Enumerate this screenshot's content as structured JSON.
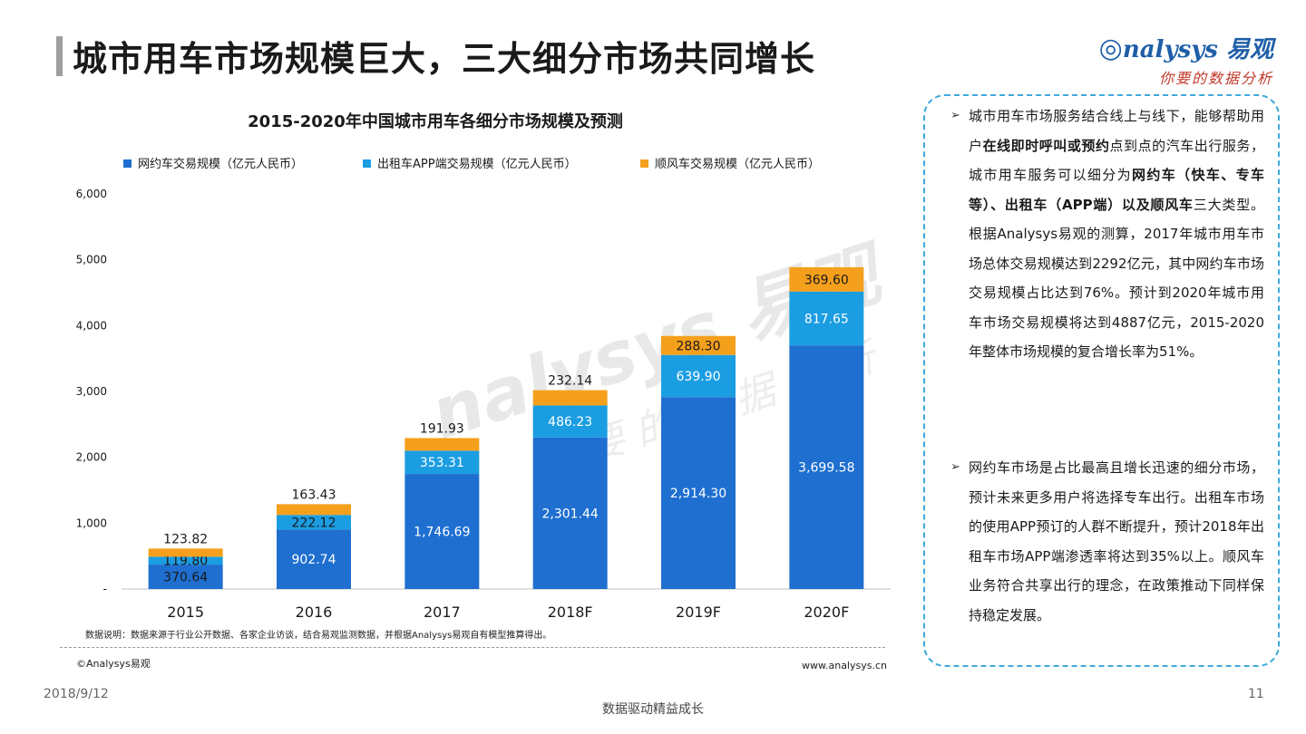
{
  "header": {
    "title": "城市用车市场规模巨大，三大细分市场共同增长",
    "logo_main": "nalysys 易观",
    "logo_sub": "你要的数据分析"
  },
  "watermark": {
    "main": "nalysys 易观",
    "sub": "你要的数据分析"
  },
  "chart_data": {
    "type": "bar",
    "stacked": true,
    "title": "2015-2020年中国城市用车各细分市场规模及预测",
    "categories": [
      "2015",
      "2016",
      "2017",
      "2018F",
      "2019F",
      "2020F"
    ],
    "series": [
      {
        "name": "网约车交易规模（亿元人民币）",
        "color": "#1f6fd0",
        "values": [
          370.64,
          902.74,
          1746.69,
          2301.44,
          2914.3,
          3699.58
        ],
        "labels": [
          "370.64",
          "902.74",
          "1,746.69",
          "2,301.44",
          "2,914.30",
          "3,699.58"
        ]
      },
      {
        "name": "出租车APP端交易规模（亿元人民币）",
        "color": "#1b9de2",
        "values": [
          119.8,
          222.12,
          353.31,
          486.23,
          639.9,
          817.65
        ],
        "labels": [
          "119.80",
          "222.12",
          "353.31",
          "486.23",
          "639.90",
          "817.65"
        ]
      },
      {
        "name": "顺风车交易规模（亿元人民币）",
        "color": "#f5a01c",
        "values": [
          123.82,
          163.43,
          191.93,
          232.14,
          288.3,
          369.6
        ],
        "labels": [
          "123.82",
          "163.43",
          "191.93",
          "232.14",
          "288.30",
          "369.60"
        ]
      }
    ],
    "ylim": [
      0,
      6000
    ],
    "yticks": [
      0,
      1000,
      2000,
      3000,
      4000,
      5000,
      6000
    ],
    "ytick_labels": [
      "-",
      "1,000",
      "2,000",
      "3,000",
      "4,000",
      "5,000",
      "6,000"
    ],
    "legend_position": "top",
    "grid": false
  },
  "source": {
    "note": "数据说明：数据来源于行业公开数据、各家企业访谈，结合易观监测数据，并根据Analysys易观自有模型推算得出。",
    "copyright": "©Analysys易观",
    "website": "www.analysys.cn"
  },
  "panel": {
    "arrow": "➢",
    "p1": {
      "t1": "城市用车市场服务结合线上与线下，能够帮助用户",
      "b1": "在线即时呼叫或预约",
      "t2": "点到点的汽车出行服务，城市用车服务可以细分为",
      "b2": "网约车（快车、专车等）、出租车（APP端）以及顺风车",
      "t3": "三大类型。根据Analysys易观的测算，2017年城市用车市场总体交易规模达到2292亿元，其中网约车市场交易规模占比达到76%。预计到2020年城市用车市场交易规模将达到4887亿元，2015-2020年整体市场规模的复合增长率为51%。"
    },
    "p2": "网约车市场是占比最高且增长迅速的细分市场，预计未来更多用户将选择专车出行。出租车市场的使用APP预订的人群不断提升，预计2018年出租车市场APP端渗透率将达到35%以上。顺风车业务符合共享出行的理念，在政策推动下同样保持稳定发展。"
  },
  "footer": {
    "date": "2018/9/12",
    "page": "11",
    "slogan": "数据驱动精益成长"
  }
}
